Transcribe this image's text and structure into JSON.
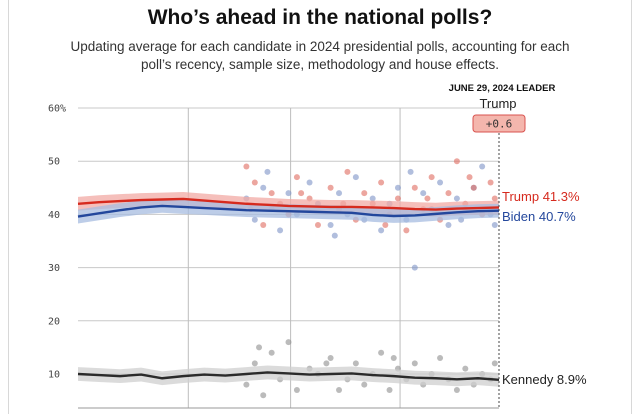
{
  "title": "Who’s ahead in the national polls?",
  "subtitle": "Updating average for each candidate in 2024 presidential polls, accounting for each poll’s recency, sample size, methodology and house effects.",
  "leader": {
    "header": "JUNE 29, 2024 LEADER",
    "name": "Trump",
    "margin": "+0.6",
    "badge_color": "#f4b6ad",
    "badge_border": "#d9534f"
  },
  "chart_data": {
    "type": "line",
    "title": "Who’s ahead in the national polls?",
    "xlabel": "",
    "ylabel": "",
    "ylim": [
      0,
      60
    ],
    "yticks": [
      "60%",
      "50",
      "40",
      "30",
      "20",
      "10"
    ],
    "ytick_values": [
      60,
      50,
      40,
      30,
      20,
      10
    ],
    "x": [
      0,
      0.05,
      0.1,
      0.15,
      0.2,
      0.25,
      0.3,
      0.35,
      0.4,
      0.45,
      0.5,
      0.55,
      0.6,
      0.65,
      0.7,
      0.75,
      0.8,
      0.85,
      0.9,
      0.95,
      1.0
    ],
    "x_note": "relative time from start of plotted period (0) to June 29, 2024 (1); no date ticks shown",
    "series": [
      {
        "name": "Trump",
        "label": "Trump 41.3%",
        "color": "#d62a1e",
        "band_color": "#f2aaa4",
        "values": [
          42.0,
          42.3,
          42.5,
          42.7,
          42.8,
          42.9,
          42.6,
          42.3,
          42.0,
          41.8,
          41.6,
          41.5,
          41.4,
          41.4,
          41.3,
          41.2,
          41.0,
          40.9,
          41.1,
          41.2,
          41.3
        ]
      },
      {
        "name": "Biden",
        "label": "Biden 40.7%",
        "color": "#23479c",
        "band_color": "#a7bce0",
        "values": [
          39.6,
          40.2,
          40.8,
          41.3,
          41.6,
          41.4,
          41.2,
          41.0,
          40.8,
          40.7,
          40.6,
          40.5,
          40.4,
          40.3,
          39.9,
          39.7,
          39.8,
          40.1,
          40.4,
          40.6,
          40.7
        ]
      },
      {
        "name": "Kennedy",
        "label": "Kennedy 8.9%",
        "color": "#2b2b2b",
        "band_color": "#cfcfcf",
        "values": [
          10.0,
          9.8,
          9.6,
          9.9,
          9.2,
          9.6,
          9.9,
          9.7,
          10.0,
          10.3,
          10.1,
          9.9,
          10.0,
          10.1,
          9.8,
          9.6,
          9.3,
          9.2,
          9.0,
          9.2,
          8.9
        ]
      }
    ],
    "polls": {
      "trump": [
        [
          0.4,
          49
        ],
        [
          0.42,
          46
        ],
        [
          0.44,
          38
        ],
        [
          0.46,
          44
        ],
        [
          0.48,
          42
        ],
        [
          0.5,
          40
        ],
        [
          0.52,
          47
        ],
        [
          0.55,
          43
        ],
        [
          0.57,
          38
        ],
        [
          0.6,
          45
        ],
        [
          0.62,
          41
        ],
        [
          0.64,
          48
        ],
        [
          0.66,
          39
        ],
        [
          0.68,
          44
        ],
        [
          0.7,
          42
        ],
        [
          0.72,
          46
        ],
        [
          0.74,
          40
        ],
        [
          0.76,
          43
        ],
        [
          0.78,
          37
        ],
        [
          0.8,
          45
        ],
        [
          0.82,
          41
        ],
        [
          0.84,
          47
        ],
        [
          0.86,
          39
        ],
        [
          0.88,
          44
        ],
        [
          0.9,
          50
        ],
        [
          0.92,
          42
        ],
        [
          0.94,
          45
        ],
        [
          0.96,
          40
        ],
        [
          0.98,
          46
        ],
        [
          0.99,
          43
        ],
        [
          0.41,
          41
        ],
        [
          0.53,
          44
        ],
        [
          0.63,
          42
        ],
        [
          0.73,
          38
        ],
        [
          0.83,
          43
        ],
        [
          0.93,
          47
        ]
      ],
      "biden": [
        [
          0.4,
          43
        ],
        [
          0.42,
          39
        ],
        [
          0.44,
          45
        ],
        [
          0.46,
          41
        ],
        [
          0.48,
          37
        ],
        [
          0.5,
          44
        ],
        [
          0.52,
          40
        ],
        [
          0.55,
          46
        ],
        [
          0.57,
          42
        ],
        [
          0.6,
          38
        ],
        [
          0.62,
          44
        ],
        [
          0.64,
          40
        ],
        [
          0.66,
          47
        ],
        [
          0.68,
          39
        ],
        [
          0.7,
          43
        ],
        [
          0.72,
          37
        ],
        [
          0.74,
          42
        ],
        [
          0.76,
          45
        ],
        [
          0.78,
          39
        ],
        [
          0.8,
          30
        ],
        [
          0.82,
          44
        ],
        [
          0.84,
          41
        ],
        [
          0.86,
          46
        ],
        [
          0.88,
          38
        ],
        [
          0.9,
          43
        ],
        [
          0.92,
          41
        ],
        [
          0.94,
          45
        ],
        [
          0.96,
          49
        ],
        [
          0.98,
          40
        ],
        [
          0.99,
          38
        ],
        [
          0.45,
          48
        ],
        [
          0.61,
          36
        ],
        [
          0.79,
          48
        ],
        [
          0.91,
          39
        ]
      ],
      "kennedy": [
        [
          0.4,
          8
        ],
        [
          0.42,
          12
        ],
        [
          0.44,
          6
        ],
        [
          0.46,
          14
        ],
        [
          0.48,
          9
        ],
        [
          0.5,
          16
        ],
        [
          0.52,
          7
        ],
        [
          0.55,
          11
        ],
        [
          0.57,
          10
        ],
        [
          0.6,
          13
        ],
        [
          0.62,
          7
        ],
        [
          0.64,
          9
        ],
        [
          0.66,
          12
        ],
        [
          0.68,
          8
        ],
        [
          0.7,
          10
        ],
        [
          0.72,
          14
        ],
        [
          0.74,
          7
        ],
        [
          0.76,
          11
        ],
        [
          0.78,
          9
        ],
        [
          0.8,
          12
        ],
        [
          0.82,
          8
        ],
        [
          0.84,
          10
        ],
        [
          0.86,
          13
        ],
        [
          0.88,
          9
        ],
        [
          0.9,
          7
        ],
        [
          0.92,
          11
        ],
        [
          0.94,
          8
        ],
        [
          0.96,
          10
        ],
        [
          0.98,
          9
        ],
        [
          0.99,
          12
        ],
        [
          0.43,
          15
        ],
        [
          0.59,
          12
        ],
        [
          0.75,
          13
        ]
      ]
    }
  }
}
